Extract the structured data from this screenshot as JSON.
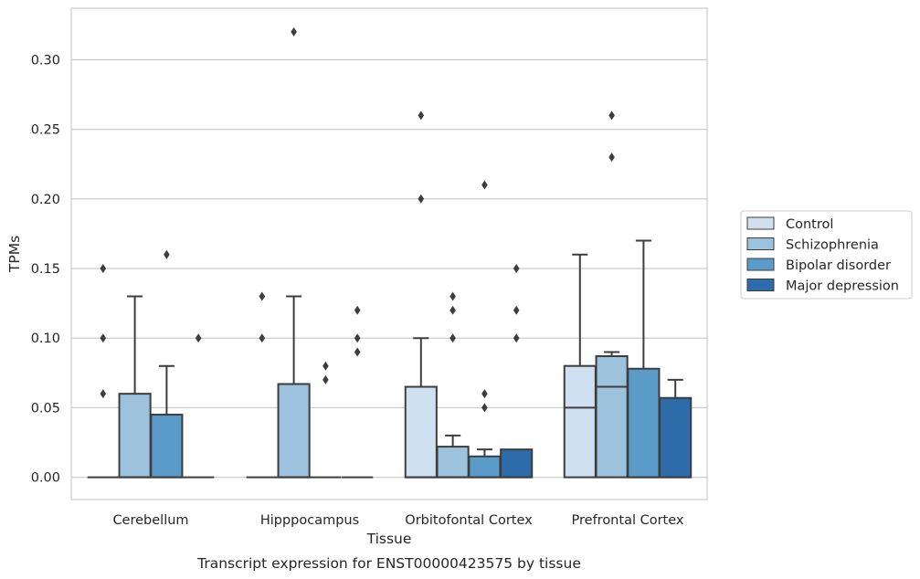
{
  "chart_data": {
    "type": "box",
    "title": "",
    "caption": "Transcript expression for ENST00000423575 by tissue",
    "xlabel": "Tissue",
    "ylabel": "TPMs",
    "ylim": [
      -0.016,
      0.337
    ],
    "yticks": [
      0.0,
      0.05,
      0.1,
      0.15,
      0.2,
      0.25,
      0.3
    ],
    "ytick_labels": [
      "0.00",
      "0.05",
      "0.10",
      "0.15",
      "0.20",
      "0.25",
      "0.30"
    ],
    "grid": "horizontal",
    "legend_position": "right",
    "categories": [
      "Cerebellum",
      "Hipppocampus",
      "Orbitofontal Cortex",
      "Prefrontal Cortex"
    ],
    "series": [
      {
        "name": "Control",
        "color": "#cfe0f0",
        "boxes": [
          {
            "category": "Cerebellum",
            "q1": 0,
            "median": 0,
            "q3": 0,
            "whisker_low": 0,
            "whisker_high": 0,
            "outliers": [
              0.06,
              0.1,
              0.15
            ]
          },
          {
            "category": "Hipppocampus",
            "q1": 0,
            "median": 0,
            "q3": 0,
            "whisker_low": 0,
            "whisker_high": 0,
            "outliers": [
              0.1,
              0.13
            ]
          },
          {
            "category": "Orbitofontal Cortex",
            "q1": 0,
            "median": 0,
            "q3": 0.065,
            "whisker_low": 0,
            "whisker_high": 0.1,
            "outliers": [
              0.2,
              0.26
            ]
          },
          {
            "category": "Prefrontal Cortex",
            "q1": 0,
            "median": 0.05,
            "q3": 0.08,
            "whisker_low": 0,
            "whisker_high": 0.16,
            "outliers": []
          }
        ]
      },
      {
        "name": "Schizophrenia",
        "color": "#9cc2dd",
        "boxes": [
          {
            "category": "Cerebellum",
            "q1": 0,
            "median": 0,
            "q3": 0.06,
            "whisker_low": 0,
            "whisker_high": 0.13,
            "outliers": []
          },
          {
            "category": "Hipppocampus",
            "q1": 0,
            "median": 0,
            "q3": 0.067,
            "whisker_low": 0,
            "whisker_high": 0.13,
            "outliers": [
              0.32
            ]
          },
          {
            "category": "Orbitofontal Cortex",
            "q1": 0,
            "median": 0,
            "q3": 0.022,
            "whisker_low": 0,
            "whisker_high": 0.03,
            "outliers": [
              0.1,
              0.12,
              0.13
            ]
          },
          {
            "category": "Prefrontal Cortex",
            "q1": 0,
            "median": 0.065,
            "q3": 0.087,
            "whisker_low": 0,
            "whisker_high": 0.09,
            "outliers": [
              0.23,
              0.26
            ]
          }
        ]
      },
      {
        "name": "Bipolar disorder",
        "color": "#5a9bc9",
        "boxes": [
          {
            "category": "Cerebellum",
            "q1": 0,
            "median": 0,
            "q3": 0.045,
            "whisker_low": 0,
            "whisker_high": 0.08,
            "outliers": [
              0.16
            ]
          },
          {
            "category": "Hipppocampus",
            "q1": 0,
            "median": 0,
            "q3": 0,
            "whisker_low": 0,
            "whisker_high": 0,
            "outliers": [
              0.07,
              0.08
            ]
          },
          {
            "category": "Orbitofontal Cortex",
            "q1": 0,
            "median": 0,
            "q3": 0.015,
            "whisker_low": 0,
            "whisker_high": 0.02,
            "outliers": [
              0.05,
              0.06,
              0.21
            ]
          },
          {
            "category": "Prefrontal Cortex",
            "q1": 0,
            "median": 0,
            "q3": 0.078,
            "whisker_low": 0,
            "whisker_high": 0.17,
            "outliers": []
          }
        ]
      },
      {
        "name": "Major depression",
        "color": "#2d6ca8",
        "boxes": [
          {
            "category": "Cerebellum",
            "q1": 0,
            "median": 0,
            "q3": 0,
            "whisker_low": 0,
            "whisker_high": 0,
            "outliers": [
              0.1
            ]
          },
          {
            "category": "Hipppocampus",
            "q1": 0,
            "median": 0,
            "q3": 0,
            "whisker_low": 0,
            "whisker_high": 0,
            "outliers": [
              0.09,
              0.1,
              0.12
            ]
          },
          {
            "category": "Orbitofontal Cortex",
            "q1": 0,
            "median": 0,
            "q3": 0.02,
            "whisker_low": 0,
            "whisker_high": 0.02,
            "outliers": [
              0.1,
              0.12,
              0.15
            ]
          },
          {
            "category": "Prefrontal Cortex",
            "q1": 0,
            "median": 0,
            "q3": 0.057,
            "whisker_low": 0,
            "whisker_high": 0.07,
            "outliers": []
          }
        ]
      }
    ]
  }
}
